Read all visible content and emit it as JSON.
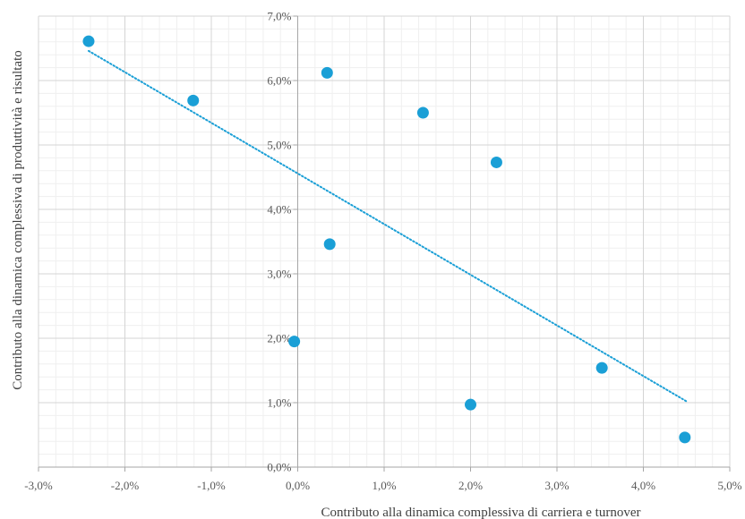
{
  "chart_data": {
    "type": "scatter",
    "title": "",
    "xlabel": "Contributo  alla dinamica complessiva di carriera e turnover",
    "ylabel": "Contributo  alla dinamica complessiva di produttività  e risultato",
    "xlim": [
      -3,
      5
    ],
    "ylim": [
      0,
      7
    ],
    "x_ticks": [
      -3,
      -2,
      -1,
      0,
      1,
      2,
      3,
      4,
      5
    ],
    "y_ticks": [
      0,
      1,
      2,
      3,
      4,
      5,
      6,
      7
    ],
    "x_tick_labels": [
      "-3,0%",
      "-2,0%",
      "-1,0%",
      "0,0%",
      "1,0%",
      "2,0%",
      "3,0%",
      "4,0%",
      "5,0%"
    ],
    "y_tick_labels": [
      "0,0%",
      "1,0%",
      "2,0%",
      "3,0%",
      "4,0%",
      "5,0%",
      "6,0%",
      "7,0%"
    ],
    "grid": true,
    "minor_grid": true,
    "marker_color": "#1a9fd6",
    "trendline_color": "#1a9fd6",
    "series": [
      {
        "points": [
          {
            "x": -2.42,
            "y": 6.61
          },
          {
            "x": -1.21,
            "y": 5.69
          },
          {
            "x": -0.04,
            "y": 1.95
          },
          {
            "x": 0.34,
            "y": 6.12
          },
          {
            "x": 0.37,
            "y": 3.46
          },
          {
            "x": 1.45,
            "y": 5.5
          },
          {
            "x": 2.0,
            "y": 0.97
          },
          {
            "x": 2.3,
            "y": 4.73
          },
          {
            "x": 3.52,
            "y": 1.54
          },
          {
            "x": 4.48,
            "y": 0.46
          }
        ]
      }
    ],
    "trendline": {
      "type": "linear",
      "x": [
        -2.42,
        4.5
      ],
      "y": [
        6.46,
        1.02
      ]
    }
  }
}
